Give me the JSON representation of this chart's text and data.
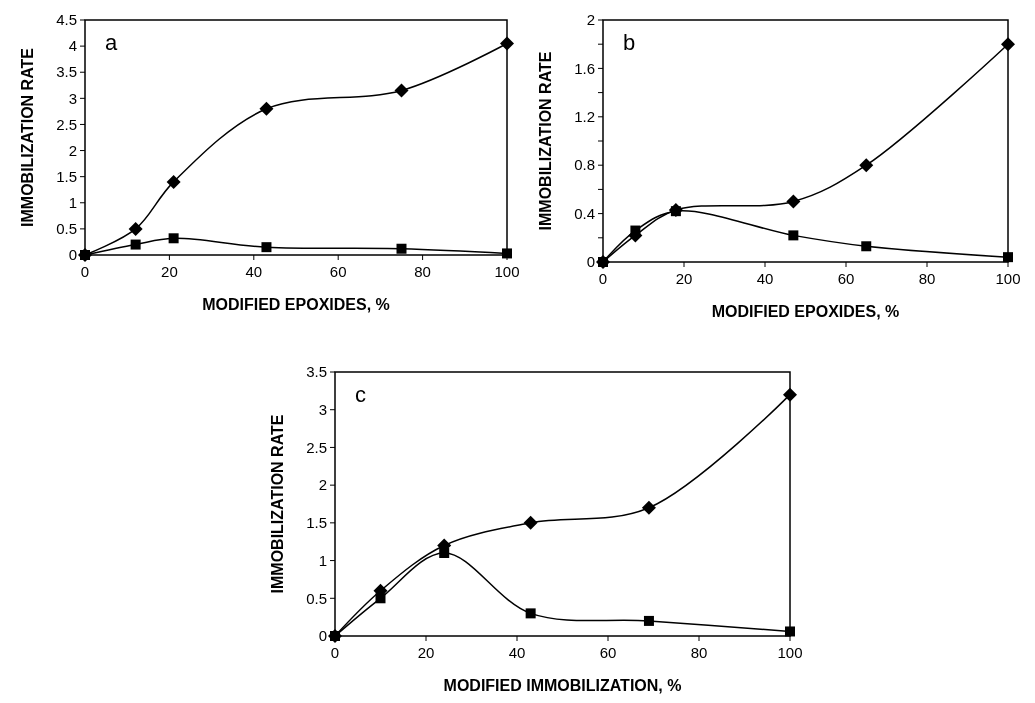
{
  "chart_data": [
    {
      "type": "line",
      "xlabel": "MODIFIED EPOXIDES, %",
      "ylabel": "IMMOBILIZATION RATE",
      "annotations": [
        "a"
      ],
      "xlim": [
        0,
        100
      ],
      "xticks": [
        0,
        20,
        40,
        60,
        80,
        100
      ],
      "ylim": [
        0,
        4.5
      ],
      "yticks": [
        0,
        0.5,
        1,
        1.5,
        2,
        2.5,
        3,
        3.5,
        4,
        4.5
      ],
      "grid": false,
      "line_style": "solid",
      "series": [
        {
          "color": "#000000",
          "marker": "diamond",
          "x": [
            0,
            12,
            21,
            43,
            75,
            100
          ],
          "values": [
            0,
            0.5,
            1.4,
            2.8,
            3.15,
            4.05
          ]
        },
        {
          "color": "#000000",
          "marker": "square",
          "x": [
            0,
            12,
            21,
            43,
            75,
            100
          ],
          "values": [
            0,
            0.2,
            0.32,
            0.15,
            0.12,
            0.03
          ]
        }
      ]
    },
    {
      "type": "line",
      "xlabel": "MODIFIED EPOXIDES, %",
      "ylabel": "IMMOBILIZATION RATE",
      "annotations": [
        "b"
      ],
      "xlim": [
        0,
        100
      ],
      "xticks": [
        0,
        20,
        40,
        60,
        80,
        100
      ],
      "ylim": [
        0,
        2
      ],
      "yticks": [
        0,
        {
          "value": 0.2,
          "label": null
        },
        0.4,
        {
          "value": 0.6,
          "label": null
        },
        0.8,
        {
          "value": 1,
          "label": null
        },
        1.2,
        {
          "value": 1.4,
          "label": null
        },
        1.6,
        {
          "value": 1.8,
          "label": null
        },
        2
      ],
      "grid": false,
      "line_style": "solid",
      "series": [
        {
          "color": "#000000",
          "marker": "diamond",
          "x": [
            0,
            8,
            18,
            47,
            65,
            100
          ],
          "values": [
            0,
            0.22,
            0.43,
            0.5,
            0.8,
            1.8
          ]
        },
        {
          "color": "#000000",
          "marker": "square",
          "x": [
            0,
            8,
            18,
            47,
            65,
            100
          ],
          "values": [
            0,
            0.26,
            0.42,
            0.22,
            0.13,
            0.04
          ]
        }
      ]
    },
    {
      "type": "line",
      "xlabel": "MODIFIED IMMOBILIZATION, %",
      "ylabel": "IMMOBILIZATION RATE",
      "annotations": [
        "c"
      ],
      "xlim": [
        0,
        100
      ],
      "xticks": [
        0,
        20,
        40,
        60,
        80,
        100
      ],
      "ylim": [
        0,
        3.5
      ],
      "yticks": [
        0,
        0.5,
        1,
        1.5,
        2,
        2.5,
        3,
        3.5
      ],
      "grid": false,
      "line_style": "solid",
      "series": [
        {
          "color": "#000000",
          "marker": "diamond",
          "x": [
            0,
            10,
            24,
            43,
            69,
            100
          ],
          "values": [
            0,
            0.6,
            1.2,
            1.5,
            1.7,
            3.2
          ]
        },
        {
          "color": "#000000",
          "marker": "square",
          "x": [
            0,
            10,
            24,
            43,
            69,
            100
          ],
          "values": [
            0,
            0.5,
            1.1,
            0.3,
            0.2,
            0.06
          ]
        }
      ]
    }
  ]
}
